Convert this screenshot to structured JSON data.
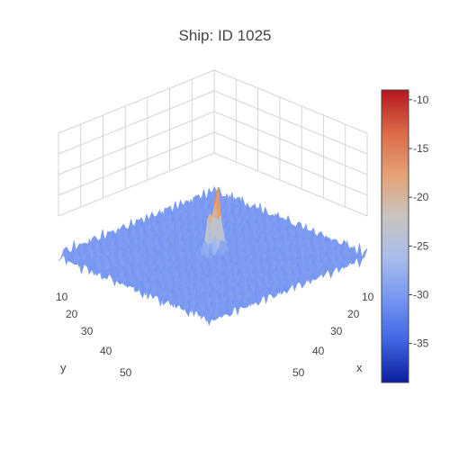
{
  "chart_data": {
    "type": "surface",
    "title": "Ship: ID 1025",
    "xlabel": "x",
    "ylabel": "y",
    "x_ticks": [
      "10",
      "20",
      "30",
      "40",
      "50"
    ],
    "y_ticks": [
      "10",
      "20",
      "30",
      "40",
      "50"
    ],
    "xlim": [
      0,
      75
    ],
    "ylim": [
      0,
      75
    ],
    "zlim": [
      -39,
      -9
    ],
    "background_level": -30,
    "noise_amplitude": 3,
    "peaks": [
      {
        "x": 36,
        "y": 34,
        "z": -12
      },
      {
        "x": 37,
        "y": 38,
        "z": -18
      }
    ],
    "colorbar": {
      "min": -39,
      "max": -9,
      "ticks": [
        "-10",
        "-15",
        "-20",
        "-25",
        "-30",
        "-35"
      ],
      "tick_values": [
        -10,
        -15,
        -20,
        -25,
        -30,
        -35
      ]
    },
    "colorscale": [
      "#0a1e9e",
      "#4065e4",
      "#7596f2",
      "#a9bdeb",
      "#c9c4bd",
      "#e5a073",
      "#da6947",
      "#b4161f"
    ],
    "grid": true
  }
}
